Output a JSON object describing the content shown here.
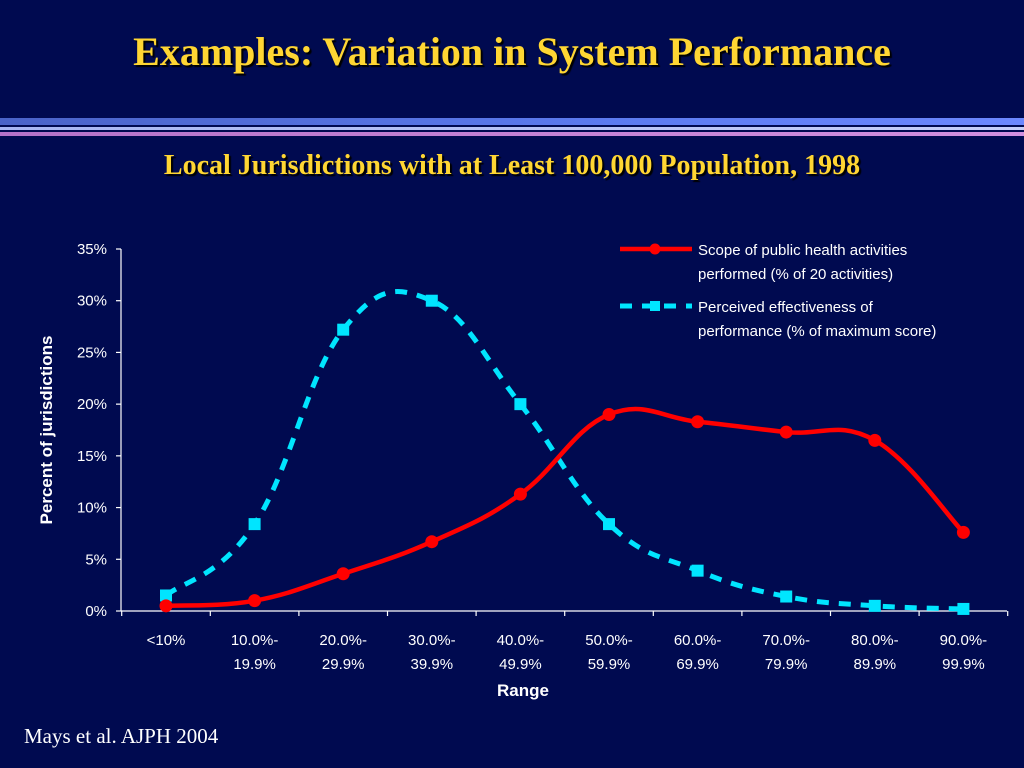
{
  "slide": {
    "title": "Examples: Variation in System Performance",
    "citation": "Mays et al.  AJPH 2004"
  },
  "colors": {
    "background": "#000A50",
    "title": "#FFD633",
    "text": "#FFFFFF",
    "series_scope": "#FF0000",
    "series_effectiveness": "#00E5FF"
  },
  "chart_data": {
    "type": "line",
    "title": "Local Jurisdictions with at Least 100,000 Population, 1998",
    "xlabel": "Range",
    "ylabel": "Percent of jurisdictions",
    "ylim": [
      0,
      35
    ],
    "yticks": [
      "0%",
      "5%",
      "10%",
      "15%",
      "20%",
      "25%",
      "30%",
      "35%"
    ],
    "categories": [
      [
        "<10%"
      ],
      [
        "10.0%-",
        "19.9%"
      ],
      [
        "20.0%-",
        "29.9%"
      ],
      [
        "30.0%-",
        "39.9%"
      ],
      [
        "40.0%-",
        "49.9%"
      ],
      [
        "50.0%-",
        "59.9%"
      ],
      [
        "60.0%-",
        "69.9%"
      ],
      [
        "70.0%-",
        "79.9%"
      ],
      [
        "80.0%-",
        "89.9%"
      ],
      [
        "90.0%-",
        "99.9%"
      ]
    ],
    "legend_position": "top-right",
    "grid": false,
    "series": [
      {
        "name": [
          "Scope of public health activities",
          "performed (% of 20 activities)"
        ],
        "style": "solid",
        "marker": "circle",
        "values": [
          0.5,
          1.0,
          3.6,
          6.7,
          11.3,
          19.0,
          18.3,
          17.3,
          16.5,
          7.6
        ]
      },
      {
        "name": [
          "Perceived effectiveness of",
          "performance (% of maximum score)"
        ],
        "style": "dashed",
        "marker": "square",
        "values": [
          1.5,
          8.4,
          27.2,
          30.0,
          20.0,
          8.4,
          3.9,
          1.4,
          0.5,
          0.2
        ]
      }
    ]
  }
}
